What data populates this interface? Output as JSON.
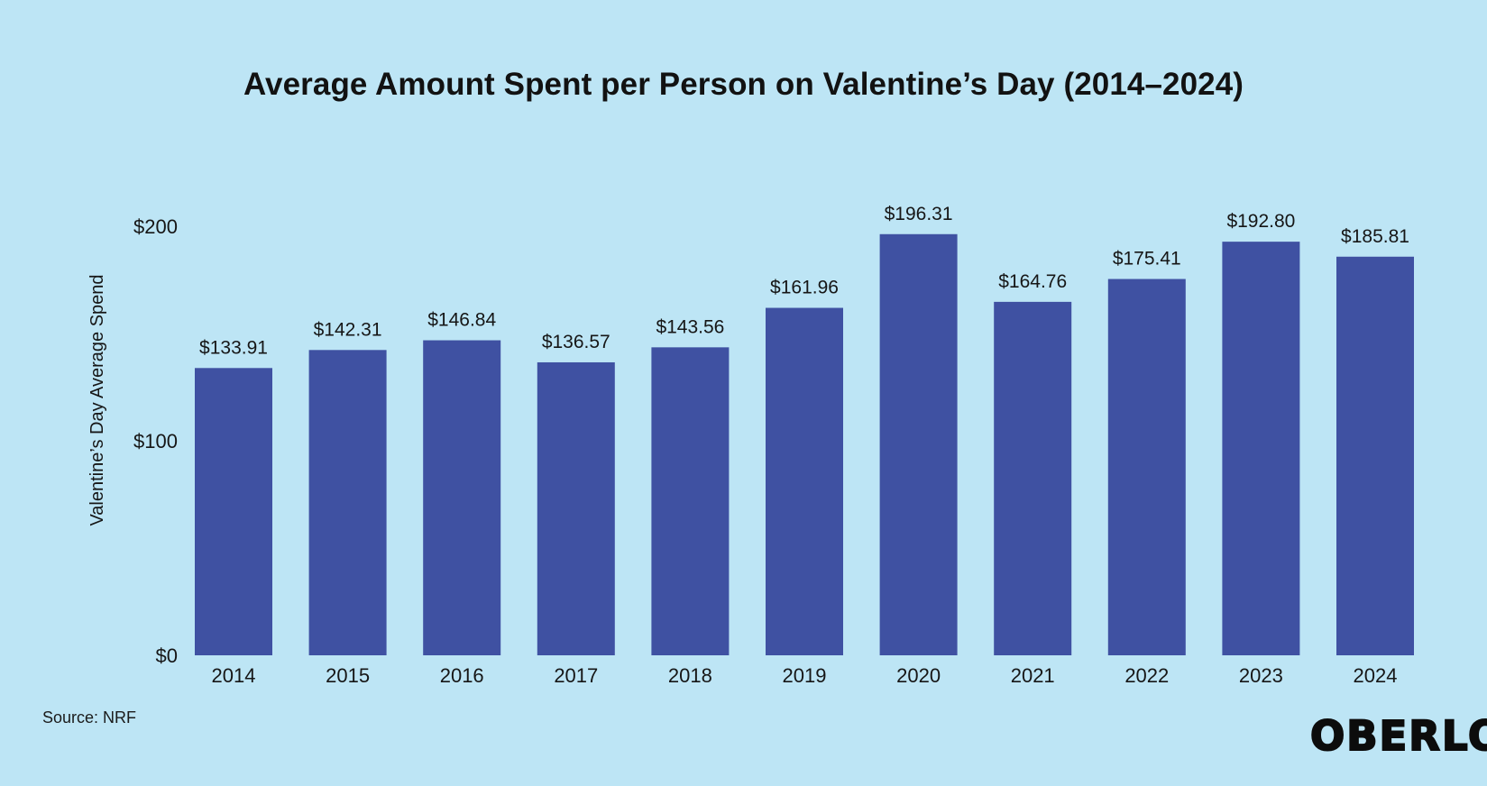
{
  "chart_data": {
    "type": "bar",
    "title": "Average Amount Spent per Person on Valentine’s Day (2014–2024)",
    "xlabel": "",
    "ylabel": "Valentine’s Day Average Spend",
    "categories": [
      "2014",
      "2015",
      "2016",
      "2017",
      "2018",
      "2019",
      "2020",
      "2021",
      "2022",
      "2023",
      "2024"
    ],
    "values": [
      133.91,
      142.31,
      146.84,
      136.57,
      143.56,
      161.96,
      196.31,
      164.76,
      175.41,
      192.8,
      185.81
    ],
    "value_labels": [
      "$133.91",
      "$142.31",
      "$146.84",
      "$136.57",
      "$143.56",
      "$161.96",
      "$196.31",
      "$164.76",
      "$175.41",
      "$192.80",
      "$185.81"
    ],
    "yticks": [
      0,
      100,
      200
    ],
    "ytick_labels": [
      "$0",
      "$100",
      "$200"
    ],
    "ylim": [
      0,
      200
    ],
    "grid": false,
    "legend": "none",
    "bar_color": "#3f51a2"
  },
  "source": "Source: NRF",
  "brand": "OBERLO",
  "background_color": "#bde5f5"
}
